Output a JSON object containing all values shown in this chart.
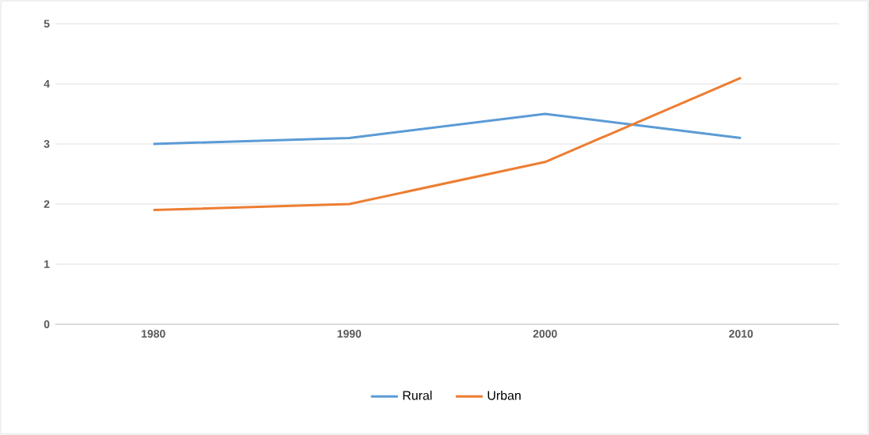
{
  "chart_data": {
    "type": "line",
    "categories": [
      "1980",
      "1990",
      "2000",
      "2010"
    ],
    "series": [
      {
        "name": "Rural",
        "color": "#5b9bd5",
        "values": [
          3.0,
          3.1,
          3.5,
          3.1
        ]
      },
      {
        "name": "Urban",
        "color": "#ed7d31",
        "values": [
          1.9,
          2.0,
          2.7,
          4.1
        ]
      }
    ],
    "ylim": [
      0,
      5
    ],
    "yticks": [
      0,
      1,
      2,
      3,
      4,
      5
    ],
    "grid": "y",
    "legend": "bottom",
    "marker": "none",
    "line_style": "solid"
  }
}
